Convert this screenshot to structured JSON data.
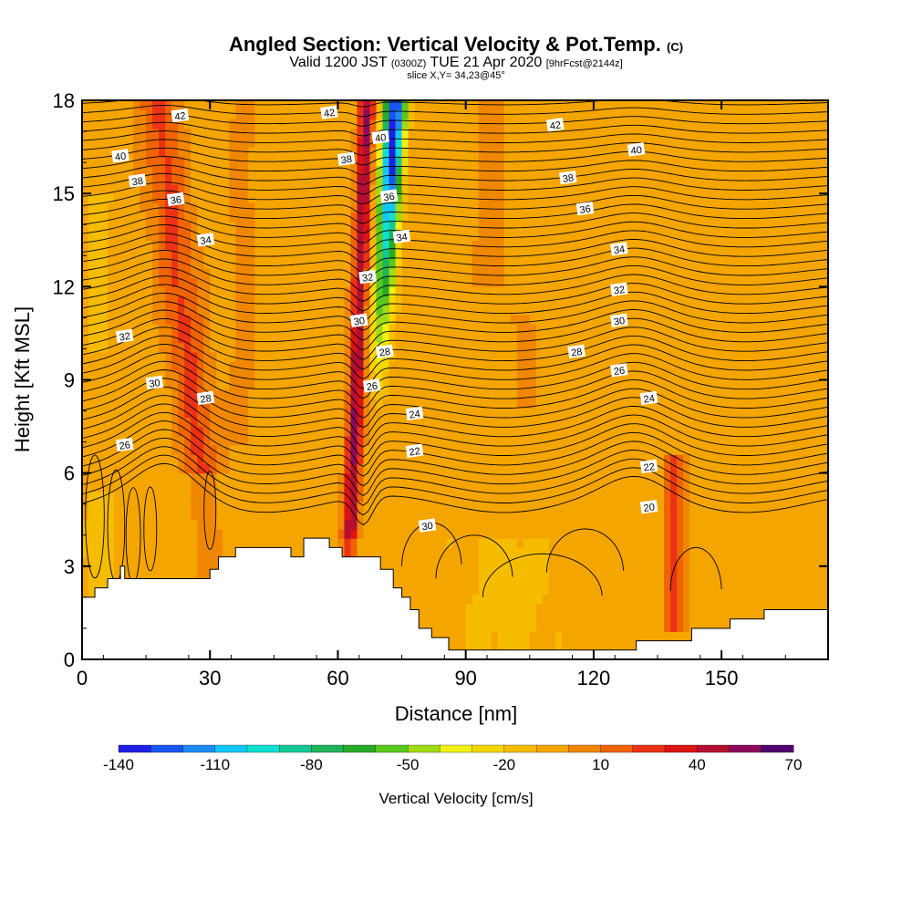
{
  "title": {
    "main": "Angled Section: Vertical Velocity & Pot.Temp.",
    "main_unit": "(C)",
    "valid": "Valid 1200 JST",
    "valid_z": "(0300Z)",
    "valid_date": "TUE 21 Apr 2020",
    "valid_fcst": "[9hrFcst@2144z]",
    "slice": "slice X,Y= 34,23@45°"
  },
  "chart_data": {
    "type": "heatmap",
    "title": "Angled Section: Vertical Velocity & Pot.Temp. (C)",
    "xlabel": "Distance [nm]",
    "ylabel": "Height [Kft MSL]",
    "xlim": [
      0,
      175
    ],
    "ylim": [
      0,
      18
    ],
    "x_ticks": [
      0,
      30,
      60,
      90,
      120,
      150
    ],
    "y_ticks": [
      0,
      3,
      6,
      9,
      12,
      15,
      18
    ],
    "colorbar": {
      "label": "Vertical Velocity [cm/s]",
      "tick_labels": [
        -140,
        -110,
        -80,
        -50,
        -20,
        10,
        40,
        70
      ],
      "bins": [
        -140,
        -130,
        -120,
        -110,
        -100,
        -90,
        -80,
        -70,
        -60,
        -50,
        -40,
        -30,
        -20,
        -10,
        0,
        10,
        20,
        30,
        40,
        50,
        60,
        70
      ],
      "colors": [
        "#1f1fe6",
        "#1a55f0",
        "#1e8cf5",
        "#14c8f5",
        "#0fe0d2",
        "#14c896",
        "#1eb45a",
        "#28aa28",
        "#5ac81e",
        "#a0dc14",
        "#f0f014",
        "#f5d700",
        "#f5bc00",
        "#f5a500",
        "#f08700",
        "#f06400",
        "#eb3214",
        "#dc1414",
        "#b40f32",
        "#8c0a5a",
        "#50006e"
      ]
    },
    "contours": {
      "variable": "Potential temperature (C)",
      "labels": [
        {
          "value": 42,
          "x": 23,
          "y": 17.5
        },
        {
          "value": 42,
          "x": 58,
          "y": 17.6
        },
        {
          "value": 42,
          "x": 111,
          "y": 17.2
        },
        {
          "value": 40,
          "x": 9,
          "y": 16.2
        },
        {
          "value": 40,
          "x": 70,
          "y": 16.8
        },
        {
          "value": 40,
          "x": 130,
          "y": 16.4
        },
        {
          "value": 38,
          "x": 13,
          "y": 15.4
        },
        {
          "value": 38,
          "x": 62,
          "y": 16.1
        },
        {
          "value": 38,
          "x": 114,
          "y": 15.5
        },
        {
          "value": 36,
          "x": 22,
          "y": 14.8
        },
        {
          "value": 36,
          "x": 72,
          "y": 14.9
        },
        {
          "value": 36,
          "x": 118,
          "y": 14.5
        },
        {
          "value": 34,
          "x": 29,
          "y": 13.5
        },
        {
          "value": 34,
          "x": 75,
          "y": 13.6
        },
        {
          "value": 34,
          "x": 126,
          "y": 13.2
        },
        {
          "value": 32,
          "x": 67,
          "y": 12.3
        },
        {
          "value": 32,
          "x": 126,
          "y": 11.9
        },
        {
          "value": 32,
          "x": 10,
          "y": 10.4
        },
        {
          "value": 30,
          "x": 65,
          "y": 10.9
        },
        {
          "value": 30,
          "x": 126,
          "y": 10.9
        },
        {
          "value": 30,
          "x": 17,
          "y": 8.9
        },
        {
          "value": 28,
          "x": 71,
          "y": 9.9
        },
        {
          "value": 28,
          "x": 116,
          "y": 9.9
        },
        {
          "value": 28,
          "x": 29,
          "y": 8.4
        },
        {
          "value": 26,
          "x": 68,
          "y": 8.8
        },
        {
          "value": 26,
          "x": 126,
          "y": 9.3
        },
        {
          "value": 26,
          "x": 10,
          "y": 6.9
        },
        {
          "value": 24,
          "x": 78,
          "y": 7.9
        },
        {
          "value": 24,
          "x": 133,
          "y": 8.4
        },
        {
          "value": 22,
          "x": 78,
          "y": 6.7
        },
        {
          "value": 22,
          "x": 133,
          "y": 6.2
        },
        {
          "value": 20,
          "x": 133,
          "y": 4.9
        },
        {
          "value": 30,
          "x": 81,
          "y": 4.3
        }
      ]
    },
    "terrain_height_kft": [
      [
        0,
        2.0
      ],
      [
        3,
        2.0
      ],
      [
        3,
        2.3
      ],
      [
        6,
        2.3
      ],
      [
        6,
        2.6
      ],
      [
        9,
        2.6
      ],
      [
        9,
        3.0
      ],
      [
        10,
        3.0
      ],
      [
        10,
        2.6
      ],
      [
        30,
        2.6
      ],
      [
        30,
        2.9
      ],
      [
        32,
        2.9
      ],
      [
        32,
        3.3
      ],
      [
        36,
        3.3
      ],
      [
        36,
        3.6
      ],
      [
        49,
        3.6
      ],
      [
        49,
        3.3
      ],
      [
        52,
        3.3
      ],
      [
        52,
        3.9
      ],
      [
        58,
        3.9
      ],
      [
        58,
        3.6
      ],
      [
        61,
        3.6
      ],
      [
        61,
        3.3
      ],
      [
        70,
        3.3
      ],
      [
        70,
        2.9
      ],
      [
        73,
        2.9
      ],
      [
        73,
        2.3
      ],
      [
        75,
        2.3
      ],
      [
        75,
        2.0
      ],
      [
        77,
        2.0
      ],
      [
        77,
        1.6
      ],
      [
        79,
        1.6
      ],
      [
        79,
        1.0
      ],
      [
        82,
        1.0
      ],
      [
        82,
        0.7
      ],
      [
        86,
        0.7
      ],
      [
        86,
        0.3
      ],
      [
        130,
        0.3
      ],
      [
        130,
        0.6
      ],
      [
        143,
        0.6
      ],
      [
        143,
        1.0
      ],
      [
        152,
        1.0
      ],
      [
        152,
        1.3
      ],
      [
        160,
        1.3
      ],
      [
        160,
        1.6
      ],
      [
        175,
        1.6
      ]
    ]
  }
}
